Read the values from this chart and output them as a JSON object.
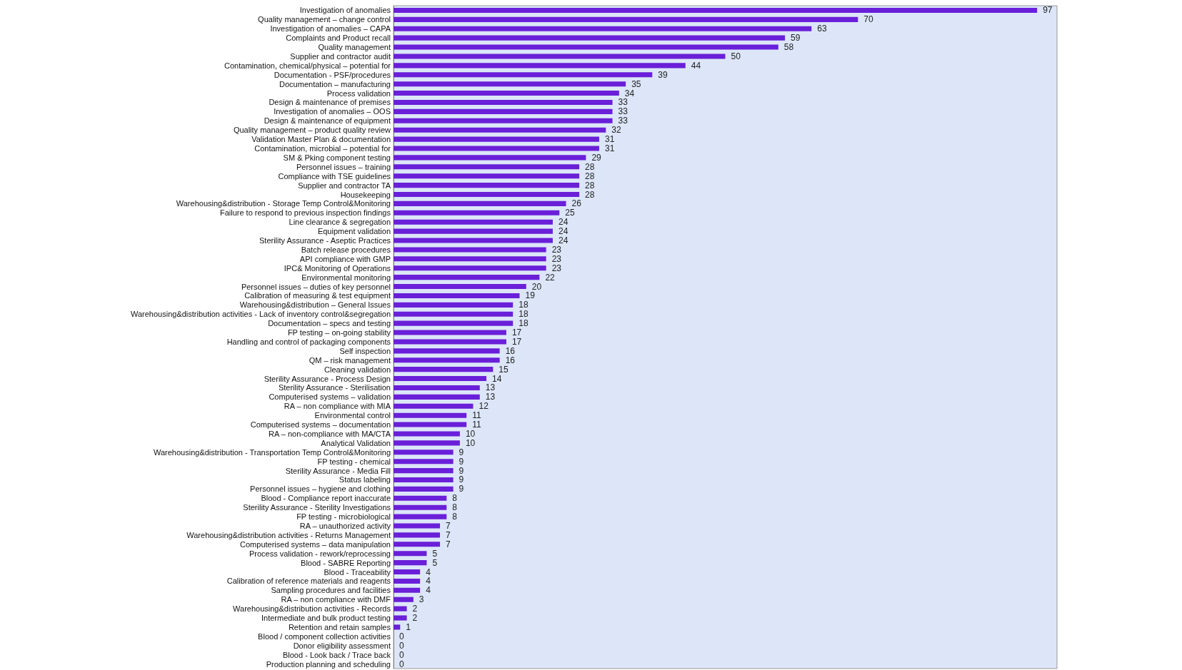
{
  "chart_data": {
    "type": "bar",
    "orientation": "horizontal",
    "data_labels": true,
    "color": "#6a1fd8",
    "categories": [
      "Investigation of anomalies",
      "Quality management – change control",
      "Investigation of anomalies – CAPA",
      "Complaints and Product recall",
      "Quality management",
      "Supplier and contractor audit",
      "Contamination, chemical/physical – potential for",
      "Documentation - PSF/procedures",
      "Documentation – manufacturing",
      "Process validation",
      "Design & maintenance of premises",
      "Investigation of anomalies – OOS",
      "Design & maintenance of equipment",
      "Quality management – product quality review",
      "Validation Master Plan & documentation",
      "Contamination, microbial – potential for",
      "SM & Pking component testing",
      "Personnel issues – training",
      "Compliance with TSE guidelines",
      "Supplier and contractor TA",
      "Housekeeping",
      "Warehousing&distribution - Storage Temp Control&Monitoring",
      "Failure to respond to previous inspection findings",
      "Line clearance & segregation",
      "Equipment validation",
      "Sterility Assurance - Aseptic Practices",
      "Batch release procedures",
      "API compliance with GMP",
      "IPC& Monitoring of Operations",
      "Environmental monitoring",
      "Personnel issues – duties of key personnel",
      "Calibration of measuring & test equipment",
      "Warehousing&distribution – General Issues",
      "Warehousing&distribution activities - Lack of inventory control&segregation",
      "Documentation – specs and testing",
      "FP testing – on-going stability",
      "Handling and control of packaging components",
      "Self inspection",
      "QM – risk management",
      "Cleaning validation",
      "Sterility Assurance - Process Design",
      "Sterility Assurance - Sterilisation",
      "Computerised systems – validation",
      "RA – non compliance with MIA",
      "Environmental control",
      "Computerised systems – documentation",
      "RA – non-compliance with MA/CTA",
      "Analytical Validation",
      "Warehousing&distribution - Transportation Temp Control&Monitoring",
      "FP testing - chemical",
      "Sterility Assurance - Media Fill",
      "Status labeling",
      "Personnel issues – hygiene and clothing",
      "Blood - Compliance report inaccurate",
      "Sterility Assurance - Sterility Investigations",
      "FP testing - microbiological",
      "RA – unauthorized activity",
      "Warehousing&distribution activities - Returns Management",
      "Computerised systems – data manipulation",
      "Process validation - rework/reprocessing",
      "Blood - SABRE Reporting",
      "Blood - Traceability",
      "Calibration of reference materials and reagents",
      "Sampling procedures and facilities",
      "RA – non compliance with DMF",
      "Warehousing&distribution activities - Records",
      "Intermediate and bulk product testing",
      "Retention and retain samples",
      "Blood / component collection activities",
      "Donor eligibility assessment",
      "Blood - Look back / Trace back",
      "Production planning and scheduling"
    ],
    "values": [
      97,
      70,
      63,
      59,
      58,
      50,
      44,
      39,
      35,
      34,
      33,
      33,
      33,
      32,
      31,
      31,
      29,
      28,
      28,
      28,
      28,
      26,
      25,
      24,
      24,
      24,
      23,
      23,
      23,
      22,
      20,
      19,
      18,
      18,
      18,
      17,
      17,
      16,
      16,
      15,
      14,
      13,
      13,
      12,
      11,
      11,
      10,
      10,
      9,
      9,
      9,
      9,
      9,
      8,
      8,
      8,
      7,
      7,
      7,
      5,
      5,
      4,
      4,
      4,
      3,
      2,
      2,
      1,
      0,
      0,
      0,
      0
    ]
  }
}
